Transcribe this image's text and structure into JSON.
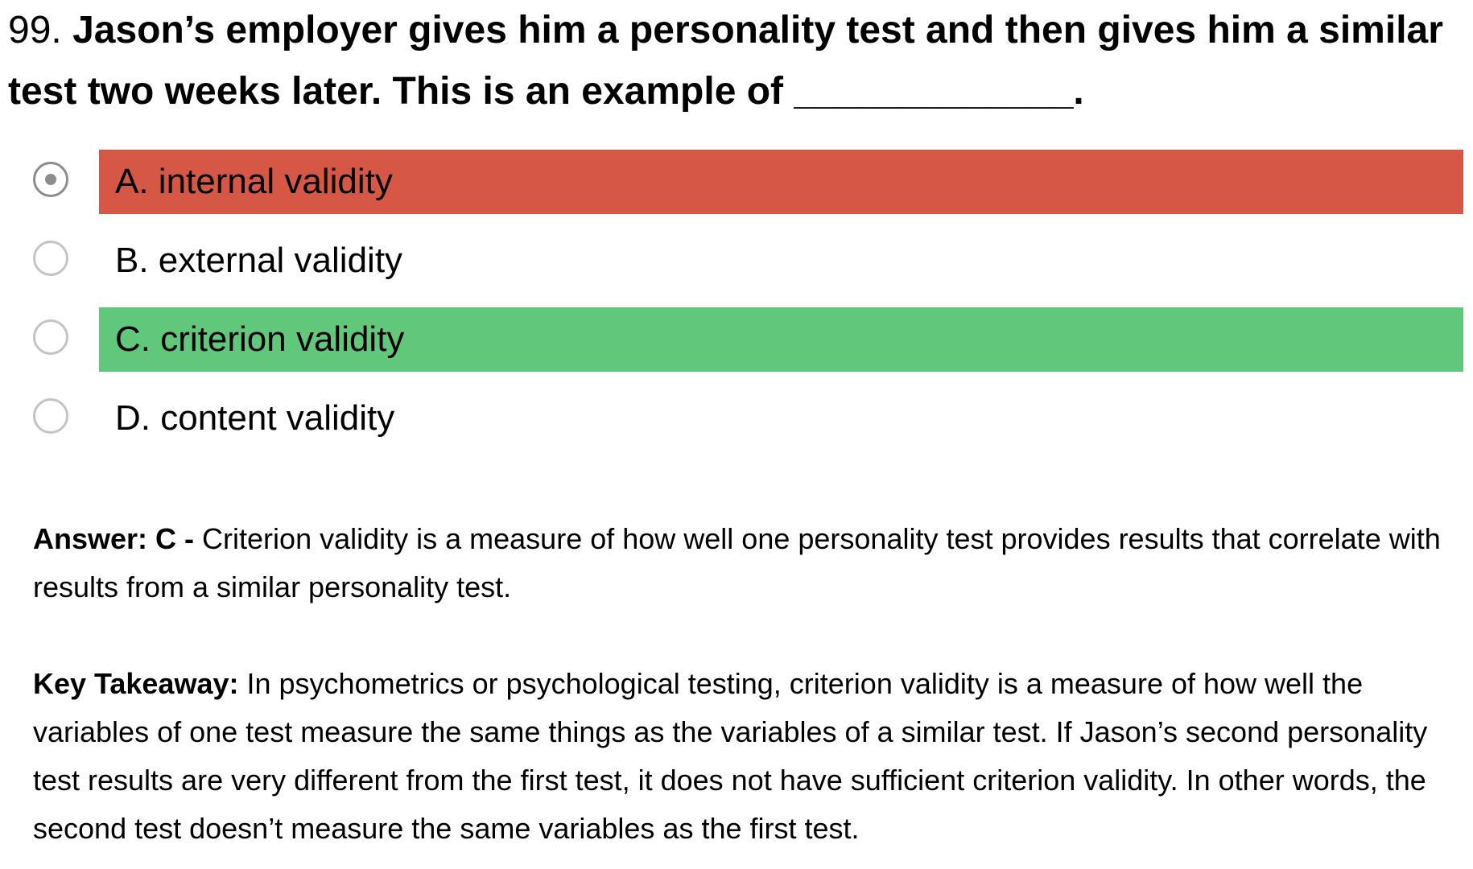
{
  "question": {
    "number": "99.",
    "text": "Jason’s employer gives him a personality test and then gives him a similar test two weeks later. This is an example of _____________."
  },
  "options": [
    {
      "label": "A. internal validity",
      "selected": true,
      "status": "incorrect"
    },
    {
      "label": "B. external validity",
      "selected": false,
      "status": "none"
    },
    {
      "label": "C. criterion validity",
      "selected": false,
      "status": "correct"
    },
    {
      "label": "D. content validity",
      "selected": false,
      "status": "none"
    }
  ],
  "answer": {
    "label": "Answer: C -",
    "text": "Criterion validity is a measure of how well one personality test provides results that correlate with results from a similar personality test."
  },
  "key_takeaway": {
    "label": "Key Takeaway:",
    "text": "In psychometrics or psychological testing, criterion validity is a measure of how well the variables of one test measure the same things as the variables of a similar test. If Jason’s second personality test results are very different from the first test, it does not have sufficient criterion validity. In other words, the second test doesn’t measure the same variables as the first test."
  },
  "colors": {
    "incorrect": "#d75746",
    "correct": "#61c77b"
  }
}
